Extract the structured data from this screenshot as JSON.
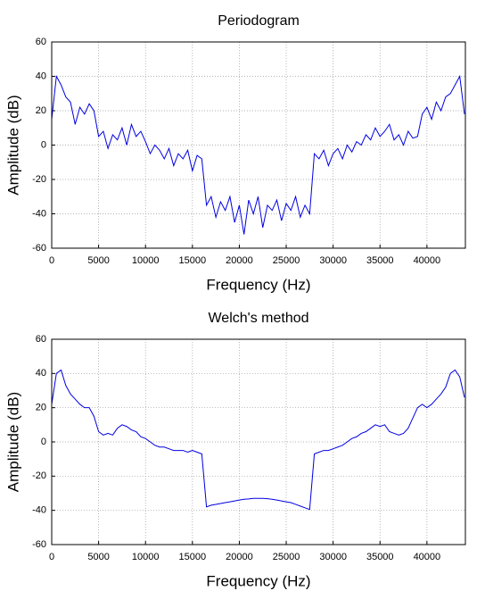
{
  "chart_data": [
    {
      "type": "line",
      "title": "Periodogram",
      "xlabel": "Frequency (Hz)",
      "ylabel": "Amplitude (dB)",
      "color": "#0000e0",
      "grid": true,
      "xlim": [
        0,
        44100
      ],
      "xticks": [
        0,
        5000,
        10000,
        15000,
        20000,
        25000,
        30000,
        35000,
        40000
      ],
      "ylim": [
        -60,
        60
      ],
      "yticks": [
        -60,
        -40,
        -20,
        0,
        20,
        40,
        60
      ],
      "x": [
        0,
        500,
        1000,
        1500,
        2000,
        2500,
        3000,
        3500,
        4000,
        4500,
        5000,
        5500,
        6000,
        6500,
        7000,
        7500,
        8000,
        8500,
        9000,
        9500,
        10000,
        10500,
        11000,
        11500,
        12000,
        12500,
        13000,
        13500,
        14000,
        14500,
        15000,
        15500,
        16000,
        16500,
        17000,
        17500,
        18000,
        18500,
        19000,
        19500,
        20000,
        20500,
        21000,
        21500,
        22000,
        22500,
        23000,
        23500,
        24000,
        24500,
        25000,
        25500,
        26000,
        26500,
        27000,
        27500,
        28000,
        28500,
        29000,
        29500,
        30000,
        30500,
        31000,
        31500,
        32000,
        32500,
        33000,
        33500,
        34000,
        34500,
        35000,
        35500,
        36000,
        36500,
        37000,
        37500,
        38000,
        38500,
        39000,
        39500,
        40000,
        40500,
        41000,
        41500,
        42000,
        42500,
        43000,
        43500,
        44000
      ],
      "values": [
        15,
        40,
        35,
        28,
        25,
        12,
        22,
        18,
        24,
        20,
        5,
        8,
        -2,
        6,
        3,
        10,
        0,
        12,
        5,
        8,
        2,
        -5,
        0,
        -3,
        -8,
        -2,
        -12,
        -5,
        -8,
        -3,
        -15,
        -6,
        -8,
        -35,
        -30,
        -42,
        -33,
        -38,
        -30,
        -45,
        -35,
        -52,
        -32,
        -40,
        -30,
        -48,
        -35,
        -38,
        -32,
        -44,
        -34,
        -38,
        -30,
        -42,
        -35,
        -40,
        -5,
        -8,
        -3,
        -12,
        -5,
        -2,
        -8,
        0,
        -4,
        2,
        0,
        6,
        3,
        10,
        5,
        8,
        12,
        3,
        6,
        0,
        8,
        4,
        5,
        18,
        22,
        15,
        25,
        20,
        28,
        30,
        35,
        40,
        18
      ]
    },
    {
      "type": "line",
      "title": "Welch's method",
      "xlabel": "Frequency (Hz)",
      "ylabel": "Amplitude (dB)",
      "color": "#0000e0",
      "grid": true,
      "xlim": [
        0,
        44100
      ],
      "xticks": [
        0,
        5000,
        10000,
        15000,
        20000,
        25000,
        30000,
        35000,
        40000
      ],
      "ylim": [
        -60,
        60
      ],
      "yticks": [
        -60,
        -40,
        -20,
        0,
        20,
        40,
        60
      ],
      "x": [
        0,
        500,
        1000,
        1500,
        2000,
        2500,
        3000,
        3500,
        4000,
        4500,
        5000,
        5500,
        6000,
        6500,
        7000,
        7500,
        8000,
        8500,
        9000,
        9500,
        10000,
        10500,
        11000,
        11500,
        12000,
        12500,
        13000,
        13500,
        14000,
        14500,
        15000,
        15500,
        16000,
        16500,
        17000,
        17500,
        18000,
        18500,
        19000,
        19500,
        20000,
        20500,
        21000,
        21500,
        22000,
        22500,
        23000,
        23500,
        24000,
        24500,
        25000,
        25500,
        26000,
        26500,
        27000,
        27500,
        28000,
        28500,
        29000,
        29500,
        30000,
        30500,
        31000,
        31500,
        32000,
        32500,
        33000,
        33500,
        34000,
        34500,
        35000,
        35500,
        36000,
        36500,
        37000,
        37500,
        38000,
        38500,
        39000,
        39500,
        40000,
        40500,
        41000,
        41500,
        42000,
        42500,
        43000,
        43500,
        44000
      ],
      "values": [
        22,
        40,
        42,
        33,
        28,
        25,
        22,
        20,
        20,
        15,
        6,
        4,
        5,
        4,
        8,
        10,
        9,
        7,
        6,
        3,
        2,
        0,
        -2,
        -3,
        -3,
        -4,
        -5,
        -5,
        -5,
        -6,
        -5,
        -6,
        -7,
        -38,
        -37,
        -36.5,
        -36,
        -35.5,
        -35,
        -34.5,
        -34,
        -33.5,
        -33.3,
        -33,
        -33,
        -33,
        -33.2,
        -33.5,
        -34,
        -34.5,
        -35,
        -35.5,
        -36.5,
        -37.5,
        -38.5,
        -39.5,
        -7,
        -6,
        -5,
        -5,
        -4,
        -3,
        -2,
        0,
        2,
        3,
        5,
        6,
        8,
        10,
        9,
        10,
        6,
        5,
        4,
        5,
        8,
        14,
        20,
        22,
        20,
        22,
        25,
        28,
        32,
        40,
        42,
        38,
        26
      ]
    }
  ]
}
